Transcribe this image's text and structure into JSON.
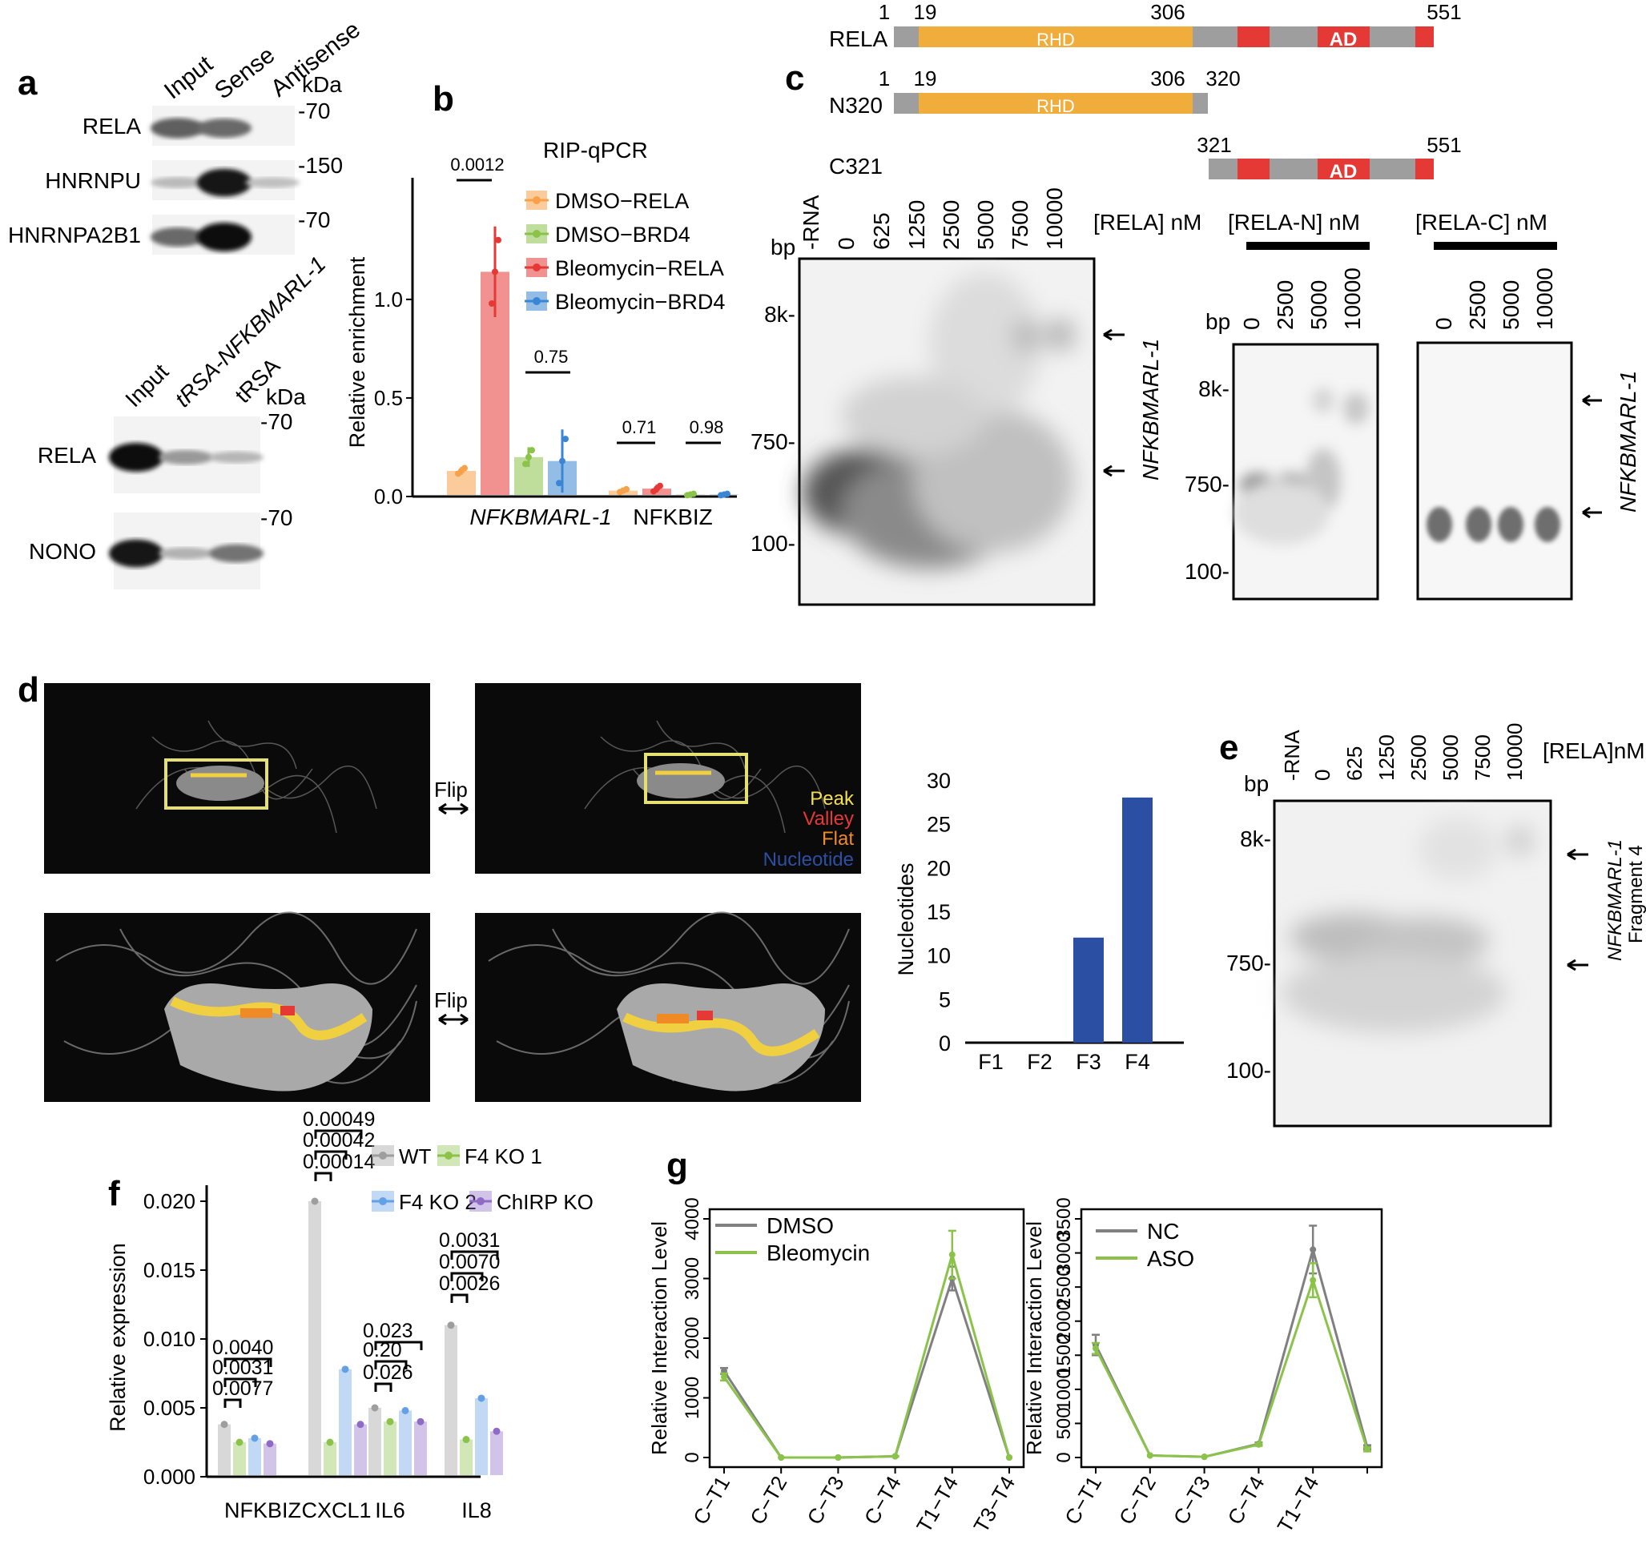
{
  "panel_a": {
    "letter": "a",
    "blot1": {
      "lanes": [
        "Input",
        "Sense",
        "Antisense"
      ],
      "unit": "kDa",
      "rows": [
        {
          "protein": "RELA",
          "marker": "-70",
          "bands": [
            0.55,
            0.5,
            0.0
          ]
        },
        {
          "protein": "HNRNPU",
          "marker": "-150",
          "bands": [
            0.08,
            0.95,
            0.05
          ]
        },
        {
          "protein": "HNRNPA2B1",
          "marker": "-70",
          "bands": [
            0.5,
            1.0,
            0.0
          ]
        }
      ]
    },
    "blot2": {
      "lanes": [
        "Input",
        "tRSA-NFKBMARL-1",
        "tRSA"
      ],
      "unit": "kDa",
      "rows": [
        {
          "protein": "RELA",
          "marker": "-70",
          "bands": [
            1.0,
            0.25,
            0.1
          ]
        },
        {
          "protein": "NONO",
          "marker": "-70",
          "bands": [
            0.95,
            0.12,
            0.45
          ]
        }
      ]
    }
  },
  "chart_data": [
    {
      "panel": "b",
      "type": "bar",
      "title": "RIP-qPCR",
      "categories": [
        "NFKBMARL-1",
        "NFKBIZ"
      ],
      "ylabel": "Relative enrichment",
      "ylim": [
        0,
        1.3
      ],
      "yticks": [
        "0.0",
        "0.5",
        "1.0"
      ],
      "series": [
        {
          "name": "DMSO−RELA",
          "color": "#f7a14a",
          "values": [
            0.13,
            0.03
          ],
          "err": [
            0.02,
            0.01
          ]
        },
        {
          "name": "DMSO−BRD4",
          "color": "#8bc34a",
          "values": [
            0.2,
            0.01
          ],
          "err": [
            0.05,
            0.005
          ]
        },
        {
          "name": "Bleomycin−RELA",
          "color": "#e53935",
          "values": [
            1.14,
            0.04
          ],
          "err": [
            0.23,
            0.02
          ]
        },
        {
          "name": "Bleomycin−BRD4",
          "color": "#3a86d4",
          "values": [
            0.18,
            0.01
          ],
          "err": [
            0.16,
            0.005
          ]
        }
      ],
      "pvalues": [
        "0.0012",
        "0.75",
        "0.71",
        "0.98"
      ]
    },
    {
      "panel": "d",
      "type": "bar",
      "categories": [
        "F1",
        "F2",
        "F3",
        "F4"
      ],
      "values": [
        0,
        0,
        12,
        28
      ],
      "ylabel": "Nucleotides",
      "ylim": [
        0,
        30
      ],
      "yticks": [
        "0",
        "5",
        "10",
        "15",
        "20",
        "25",
        "30"
      ],
      "color": "#2b4fa3"
    },
    {
      "panel": "f",
      "type": "bar",
      "categories": [
        "NFKBIZ",
        "CXCL1",
        "IL6",
        "IL8"
      ],
      "ylabel": "Relative expression",
      "ylim": [
        0,
        0.021
      ],
      "yticks": [
        "0.000",
        "0.005",
        "0.010",
        "0.015",
        "0.020"
      ],
      "series": [
        {
          "name": "WT",
          "color": "#9e9e9e",
          "values": [
            0.0038,
            0.02,
            0.005,
            0.011
          ]
        },
        {
          "name": "F4 KO 1",
          "color": "#8bc34a",
          "values": [
            0.0025,
            0.0025,
            0.004,
            0.0027
          ]
        },
        {
          "name": "F4 KO 2",
          "color": "#64a0e6",
          "values": [
            0.0028,
            0.0078,
            0.0048,
            0.0057
          ]
        },
        {
          "name": "ChIRP KO",
          "color": "#8e6cc6",
          "values": [
            0.0024,
            0.0038,
            0.004,
            0.0033
          ]
        }
      ],
      "pvalues": [
        [
          "0.0040",
          "0.0031",
          "0.0077"
        ],
        [
          "0.00049",
          "0.00042",
          "0.00014"
        ],
        [
          "0.023",
          "0.20",
          "0.026"
        ],
        [
          "0.0031",
          "0.0070",
          "0.0026"
        ]
      ]
    },
    {
      "panel": "g-left",
      "type": "line",
      "categories": [
        "C−T1",
        "C−T2",
        "C−T3",
        "C−T4",
        "T1−T4",
        "T3−T4"
      ],
      "ylabel": "Relative Interaction Level",
      "ylim": [
        0,
        4000
      ],
      "yticks": [
        "0",
        "1000",
        "2000",
        "3000",
        "4000"
      ],
      "series": [
        {
          "name": "DMSO",
          "color": "#808080",
          "values": [
            1450,
            0,
            0,
            20,
            3000,
            0
          ],
          "err": [
            50,
            0,
            0,
            5,
            200,
            0
          ]
        },
        {
          "name": "Bleomycin",
          "color": "#8bc34a",
          "values": [
            1350,
            0,
            0,
            20,
            3400,
            0
          ],
          "err": [
            60,
            0,
            0,
            5,
            400,
            0
          ]
        }
      ]
    },
    {
      "panel": "g-right",
      "type": "line",
      "categories": [
        "C−T1",
        "C−T2",
        "C−T3",
        "C−T4",
        "T1−T4",
        ""
      ],
      "ylabel": "Relative Interaction Level",
      "ylim": [
        0,
        3500
      ],
      "yticks": [
        "0",
        "500",
        "1000",
        "1500",
        "2000",
        "2500",
        "3000",
        "3500"
      ],
      "series": [
        {
          "name": "NC",
          "color": "#808080",
          "values": [
            1650,
            30,
            10,
            200,
            3050,
            150
          ],
          "err": [
            150,
            0,
            0,
            20,
            350,
            30
          ]
        },
        {
          "name": "ASO",
          "color": "#8bc34a",
          "values": [
            1600,
            30,
            10,
            190,
            2600,
            120
          ],
          "err": [
            80,
            0,
            0,
            20,
            250,
            30
          ]
        }
      ]
    }
  ],
  "panel_c": {
    "letter": "c",
    "constructs": [
      {
        "name": "RELA",
        "start": "1",
        "rhd_start": "19",
        "rhd_end": "306",
        "end": "551",
        "domain": "RHD",
        "ad": "AD"
      },
      {
        "name": "N320",
        "start": "1",
        "rhd_start": "19",
        "rhd_end": "306",
        "end": "320",
        "domain": "RHD"
      },
      {
        "name": "C321",
        "start": "321",
        "end": "551",
        "ad": "AD"
      }
    ],
    "gel_full": {
      "lanes": [
        "-RNA",
        "0",
        "625",
        "1250",
        "2500",
        "5000",
        "7500",
        "10000"
      ],
      "conc": "[RELA] nM",
      "bp": "bp",
      "markers": [
        "8k-",
        "750-",
        "100-"
      ],
      "rna": "NFKBMARL-1"
    },
    "gel_n": {
      "lanes": [
        "0",
        "2500",
        "5000",
        "10000"
      ],
      "conc": "[RELA-N] nM",
      "bp": "bp",
      "markers": [
        "8k-",
        "750-",
        "100-"
      ]
    },
    "gel_c": {
      "lanes": [
        "0",
        "2500",
        "5000",
        "10000"
      ],
      "conc": "[RELA-C] nM",
      "rna": "NFKBMARL-1"
    }
  },
  "panel_d": {
    "letter": "d",
    "flip": "Flip",
    "legend": [
      {
        "label": "Peak",
        "color": "#f5e04a"
      },
      {
        "label": "Valley",
        "color": "#e53935"
      },
      {
        "label": "Flat",
        "color": "#f08a24"
      },
      {
        "label": "Nucleotide",
        "color": "#2b4fa3"
      }
    ]
  },
  "panel_e": {
    "letter": "e",
    "lanes": [
      "-RNA",
      "0",
      "625",
      "1250",
      "2500",
      "5000",
      "7500",
      "10000"
    ],
    "conc": "[RELA]nM",
    "bp": "bp",
    "markers": [
      "8k-",
      "750-",
      "100-"
    ],
    "rna": "NFKBMARL-1",
    "rna2": "Fragment 4"
  },
  "panel_f": {
    "letter": "f"
  },
  "panel_g": {
    "letter": "g"
  }
}
